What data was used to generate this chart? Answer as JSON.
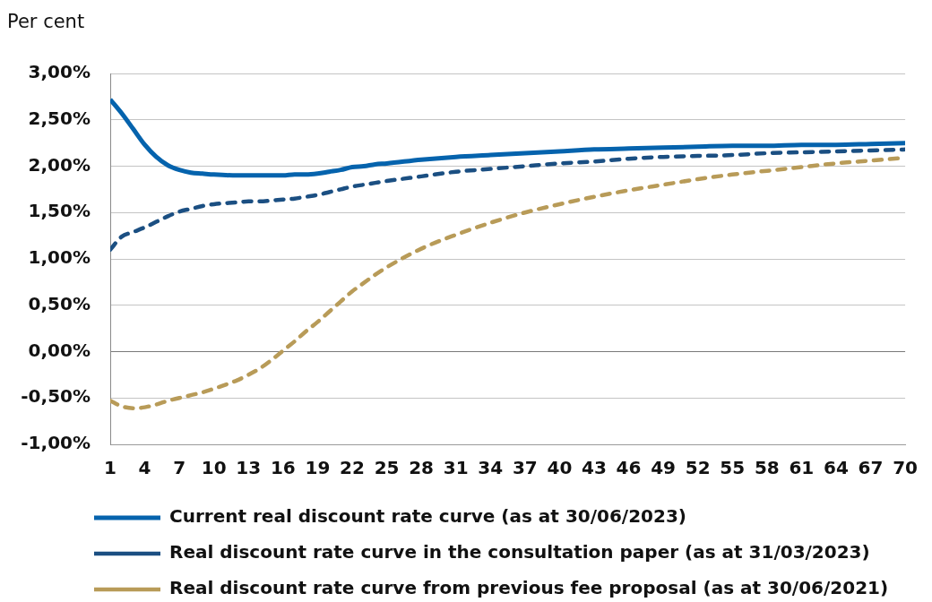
{
  "chart_data": {
    "type": "line",
    "ylabel": "Per cent",
    "x": [
      1,
      2,
      3,
      4,
      5,
      6,
      7,
      8,
      9,
      10,
      12,
      13,
      14,
      15,
      16,
      17,
      18,
      19,
      20,
      21,
      22,
      23,
      24,
      25,
      28,
      31,
      34,
      37,
      40,
      43,
      46,
      49,
      52,
      55,
      58,
      61,
      64,
      67,
      70
    ],
    "xlim": [
      1,
      70
    ],
    "xticks": [
      1,
      4,
      7,
      10,
      13,
      16,
      19,
      22,
      25,
      28,
      31,
      34,
      37,
      40,
      43,
      46,
      49,
      52,
      55,
      58,
      61,
      64,
      67,
      70
    ],
    "ylim": [
      -1,
      3
    ],
    "yticks": [
      {
        "value": -1,
        "label": "-1,00%"
      },
      {
        "value": -0.5,
        "label": "-0,50%"
      },
      {
        "value": 0,
        "label": "0,00%"
      },
      {
        "value": 0.5,
        "label": "0,50%"
      },
      {
        "value": 1,
        "label": "1,00%"
      },
      {
        "value": 1.5,
        "label": "1,50%"
      },
      {
        "value": 2,
        "label": "2,00%"
      },
      {
        "value": 2.5,
        "label": "2,50%"
      },
      {
        "value": 3,
        "label": "3,00%"
      }
    ],
    "series": [
      {
        "name": "Current real discount rate curve (as at 30/06/2023)",
        "color": "#0563ad",
        "line_style": "solid",
        "values": [
          2.72,
          2.57,
          2.4,
          2.23,
          2.1,
          2.01,
          1.96,
          1.93,
          1.92,
          1.91,
          1.9,
          1.9,
          1.9,
          1.9,
          1.9,
          1.91,
          1.91,
          1.92,
          1.94,
          1.96,
          1.99,
          2.0,
          2.02,
          2.03,
          2.07,
          2.1,
          2.12,
          2.14,
          2.16,
          2.18,
          2.19,
          2.2,
          2.21,
          2.22,
          2.22,
          2.23,
          2.23,
          2.24,
          2.25
        ]
      },
      {
        "name": "Real discount rate curve in the consultation paper (as at 31/03/2023)",
        "color": "#1b4f82",
        "line_style": "dashed",
        "values": [
          1.1,
          1.24,
          1.29,
          1.34,
          1.4,
          1.46,
          1.51,
          1.54,
          1.57,
          1.59,
          1.61,
          1.62,
          1.62,
          1.63,
          1.64,
          1.65,
          1.67,
          1.69,
          1.72,
          1.75,
          1.78,
          1.8,
          1.82,
          1.84,
          1.89,
          1.94,
          1.97,
          2.0,
          2.03,
          2.05,
          2.08,
          2.1,
          2.11,
          2.12,
          2.14,
          2.15,
          2.16,
          2.17,
          2.18
        ]
      },
      {
        "name": "Real discount rate curve from previous fee proposal (as at 30/06/2021)",
        "color": "#b89b58",
        "line_style": "dashed",
        "values": [
          -0.53,
          -0.59,
          -0.61,
          -0.6,
          -0.57,
          -0.53,
          -0.5,
          -0.47,
          -0.44,
          -0.4,
          -0.31,
          -0.25,
          -0.18,
          -0.09,
          0.01,
          0.11,
          0.22,
          0.32,
          0.43,
          0.54,
          0.65,
          0.74,
          0.83,
          0.91,
          1.11,
          1.26,
          1.39,
          1.5,
          1.59,
          1.67,
          1.74,
          1.8,
          1.86,
          1.91,
          1.95,
          1.99,
          2.03,
          2.06,
          2.09
        ]
      }
    ],
    "grid": "y",
    "legend": "bottom",
    "marker": "none"
  }
}
